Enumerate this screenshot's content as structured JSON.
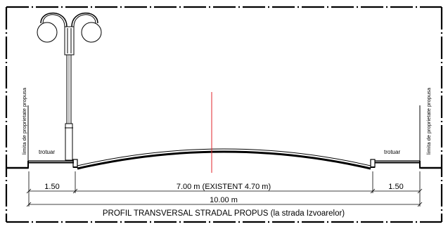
{
  "labels": {
    "property_limit_left": "limita de proprietate propusa",
    "property_limit_right": "limita de proprietate propusa",
    "sidewalk_left": "trotuar",
    "sidewalk_right": "trotuar"
  },
  "dimensions": {
    "left_sidewalk": "1.50",
    "roadway": "7.00 m (EXISTENT 4.70  m)",
    "right_sidewalk": "1.50",
    "total": "10.00 m"
  },
  "title": "PROFIL TRANSVERSAL STRADAL PROPUS (la strada Izvoarelor)",
  "colors": {
    "line": "#000000",
    "axis": "#e0262b",
    "background": "#ffffff"
  },
  "icons": {
    "lamp": "double-arm-street-lamp-icon"
  }
}
